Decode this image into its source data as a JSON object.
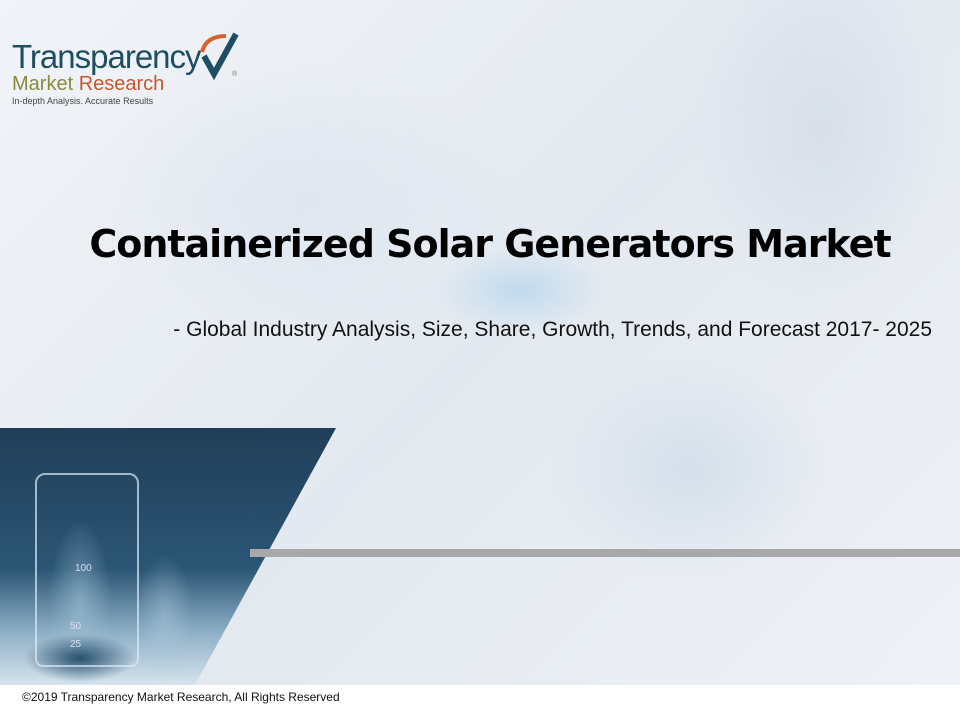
{
  "logo": {
    "line1": "Transparency",
    "line2a": "Market",
    "line2b": "Research",
    "tagline": "In-depth Analysis. Accurate Results",
    "registered": "®"
  },
  "title": "Containerized Solar Generators Market",
  "subtitle": "- Global Industry Analysis, Size, Share, Growth, Trends, and Forecast 2017- 2025",
  "flask_marks": [
    "100",
    "50",
    "25"
  ],
  "footer": "©2019 Transparency Market Research, All Rights Reserved",
  "colors": {
    "logo_blue": "#1f4e63",
    "logo_olive": "#8b8a3c",
    "logo_orange": "#c9572c",
    "divider": "#a8a8a8"
  }
}
